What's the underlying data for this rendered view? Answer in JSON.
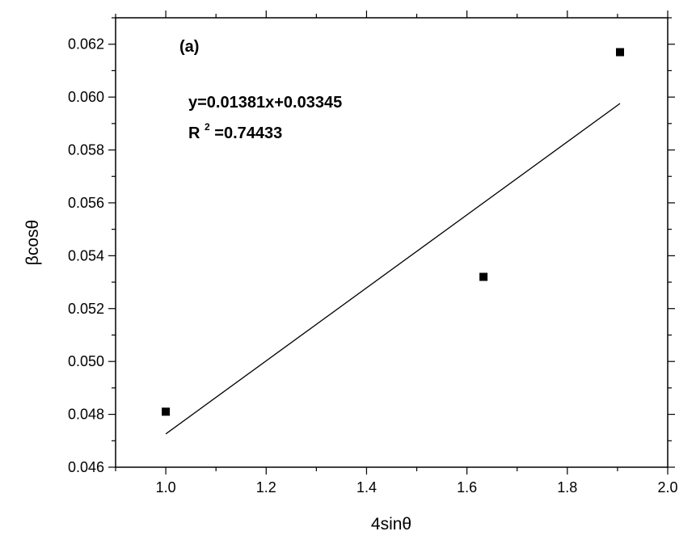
{
  "chart_data": {
    "type": "scatter",
    "title": "",
    "panel_label": "(a)",
    "xlabel": "4sinθ",
    "ylabel": "βcosθ",
    "xlim": [
      0.9,
      2.0
    ],
    "ylim": [
      0.046,
      0.063
    ],
    "x_ticks": [
      1.0,
      1.2,
      1.4,
      1.6,
      1.8,
      2.0
    ],
    "x_tick_labels": [
      "1.0",
      "1.2",
      "1.4",
      "1.6",
      "1.8",
      "2.0"
    ],
    "y_ticks": [
      0.046,
      0.048,
      0.05,
      0.052,
      0.054,
      0.056,
      0.058,
      0.06,
      0.062
    ],
    "y_tick_labels": [
      "0.046",
      "0.048",
      "0.050",
      "0.052",
      "0.054",
      "0.056",
      "0.058",
      "0.060",
      "0.062"
    ],
    "grid": false,
    "legend": "none",
    "points": [
      {
        "x": 1.0,
        "y": 0.0481
      },
      {
        "x": 1.633,
        "y": 0.0532
      },
      {
        "x": 1.905,
        "y": 0.0617
      }
    ],
    "fit": {
      "slope": 0.01381,
      "intercept": 0.03345,
      "x_range": [
        1.0,
        1.905
      ],
      "equation_text": "y=0.01381x+0.03345",
      "r2_prefix": "R",
      "r2_superscript": "2",
      "r2_value_text": "=0.74433"
    },
    "colors": {
      "marker": "#000000",
      "line": "#000000",
      "axis": "#000000"
    }
  }
}
